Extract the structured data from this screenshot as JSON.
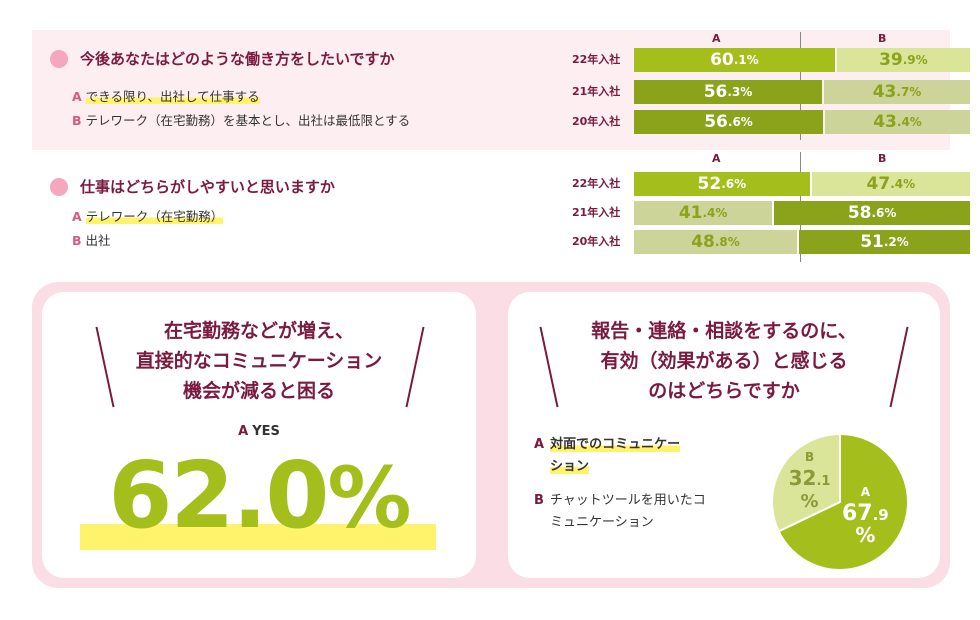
{
  "survey1": {
    "question": "今後あなたはどのような働き方をしたいですか",
    "option_a_letter": "A",
    "option_a": "できる限り、出社して仕事する",
    "option_b_letter": "B",
    "option_b": "テレワーク（在宅勤務）を基本とし、出社は最低限とする",
    "col_a": "A",
    "col_b": "B"
  },
  "survey2": {
    "question": "仕事はどちらがしやすいと思いますか",
    "option_a_letter": "A",
    "option_a": "テレワーク（在宅勤務）",
    "option_b_letter": "B",
    "option_b": "出社",
    "col_a": "A",
    "col_b": "B"
  },
  "card_left": {
    "title_line1": "在宅勤務などが増え、",
    "title_line2": "直接的なコミュニケーション",
    "title_line3": "機会が減ると困る",
    "answer_letter": "A",
    "answer": "YES",
    "value_int": "62.0",
    "value_pct": "%"
  },
  "card_right": {
    "title_line1": "報告・連絡・相談をするのに、",
    "title_line2": "有効（効果がある）と感じる",
    "title_line3": "のはどちらですか",
    "option_a_letter": "A",
    "option_a_line1": "対面でのコミュニケー",
    "option_a_line2": "ション",
    "option_b_letter": "B",
    "option_b_line1": "チャットツールを用いたコ",
    "option_b_line2": "ミュニケーション"
  },
  "chart_data": [
    {
      "type": "bar",
      "stacked": true,
      "orientation": "horizontal",
      "title": "今後あなたはどのような働き方をしたいですか",
      "categories": [
        "22年入社",
        "21年入社",
        "20年入社"
      ],
      "series": [
        {
          "name": "A",
          "values": [
            60.1,
            56.3,
            56.6
          ],
          "labels": [
            [
              "60",
              ".1%"
            ],
            [
              "56",
              ".3%"
            ],
            [
              "56",
              ".6%"
            ]
          ]
        },
        {
          "name": "B",
          "values": [
            39.9,
            43.7,
            43.4
          ],
          "labels": [
            [
              "39",
              ".9%"
            ],
            [
              "43",
              ".7%"
            ],
            [
              "43",
              ".4%"
            ]
          ]
        }
      ],
      "styles": [
        [
          "dark",
          "light"
        ],
        [
          "dark",
          "light"
        ],
        [
          "dark",
          "light"
        ]
      ],
      "colors": {
        "a_dark": "#a4be1c",
        "b_light": "#dbe59a",
        "a_dark2": "#8aa31a",
        "b_light2": "#ccd49a"
      },
      "xlim": [
        0,
        100
      ]
    },
    {
      "type": "bar",
      "stacked": true,
      "orientation": "horizontal",
      "title": "仕事はどちらがしやすいと思いますか",
      "categories": [
        "22年入社",
        "21年入社",
        "20年入社"
      ],
      "series": [
        {
          "name": "A",
          "values": [
            52.6,
            41.4,
            48.8
          ],
          "labels": [
            [
              "52",
              ".6%"
            ],
            [
              "41",
              ".4%"
            ],
            [
              "48",
              ".8%"
            ]
          ]
        },
        {
          "name": "B",
          "values": [
            47.4,
            58.6,
            51.2
          ],
          "labels": [
            [
              "47",
              ".4%"
            ],
            [
              "58",
              ".6%"
            ],
            [
              "51",
              ".2%"
            ]
          ]
        }
      ],
      "styles": [
        [
          "dark",
          "light"
        ],
        [
          "light",
          "dark"
        ],
        [
          "light",
          "dark"
        ]
      ],
      "xlim": [
        0,
        100
      ]
    },
    {
      "type": "pie",
      "title": "報告・連絡・相談をするのに、有効（効果がある）と感じるのはどちらですか",
      "slices": [
        {
          "name": "A",
          "value": 67.9,
          "label_int": "67",
          "label_dec": ".9",
          "label_pct": "%",
          "color": "#a4be1c"
        },
        {
          "name": "B",
          "value": 32.1,
          "label_int": "32",
          "label_dec": ".1",
          "label_pct": "%",
          "color": "#dbe59a"
        }
      ]
    }
  ]
}
